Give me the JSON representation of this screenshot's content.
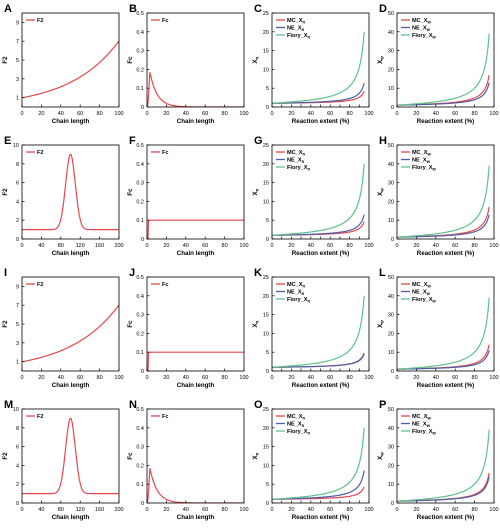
{
  "chart_data": [
    {
      "letter": "A",
      "type": "line",
      "series": [
        {
          "name": "F2",
          "shape": "exp",
          "color": "#e8474c"
        }
      ],
      "xlabel": "Chain length",
      "ylabel": "F2",
      "xlim": [
        0,
        100
      ],
      "ylim": [
        0,
        10
      ],
      "xticks": [
        0,
        20,
        40,
        60,
        80,
        100
      ],
      "yticks": [
        1,
        3,
        5,
        7,
        9
      ],
      "legend": "top-left"
    },
    {
      "letter": "B",
      "type": "line",
      "series": [
        {
          "name": "Fc",
          "shape": "decay",
          "color": "#e8474c"
        }
      ],
      "xlabel": "Chain length",
      "ylabel": "Fc",
      "xlim": [
        0,
        100
      ],
      "ylim": [
        0,
        0.5
      ],
      "xticks": [
        0,
        20,
        40,
        60,
        80,
        100
      ],
      "yticks": [
        0,
        0.1,
        0.2,
        0.3,
        0.4,
        0.5
      ],
      "legend": "top-left"
    },
    {
      "letter": "C",
      "type": "line",
      "series": [
        {
          "name": "MC_X̄n",
          "base": "MC_X",
          "sub": "n",
          "end": 4.2,
          "color": "#e8474c"
        },
        {
          "name": "NE_X̄n",
          "base": "NE_X",
          "sub": "n",
          "end": 6.3,
          "color": "#4d5fa8"
        },
        {
          "name": "Flory_X̄n",
          "base": "Flory_X",
          "sub": "n",
          "end": 20,
          "color": "#5cc28a"
        }
      ],
      "xlabel": "Reaction extent (%)",
      "ylabel": "X̄n",
      "ylabel_base": "X",
      "ylabel_sub": "n",
      "xlim": [
        0,
        100
      ],
      "ylim": [
        0,
        25
      ],
      "xticks": [
        0,
        10,
        20,
        30,
        40,
        50,
        60,
        70,
        80,
        90,
        100
      ],
      "yticks": [
        0,
        5,
        10,
        15,
        20,
        25
      ],
      "legend": "top-left"
    },
    {
      "letter": "D",
      "type": "line",
      "series": [
        {
          "name": "MC_X̄w",
          "base": "MC_X",
          "sub": "w",
          "end": 17,
          "color": "#e8474c"
        },
        {
          "name": "NE_X̄w",
          "base": "NE_X",
          "sub": "w",
          "end": 13,
          "color": "#4d5fa8"
        },
        {
          "name": "Flory_X̄w",
          "base": "Flory_X",
          "sub": "w",
          "end": 39,
          "color": "#5cc28a"
        }
      ],
      "xlabel": "Reaction extent (%)",
      "ylabel": "X̄w",
      "ylabel_base": "X",
      "ylabel_sub": "w",
      "xlim": [
        0,
        100
      ],
      "ylim": [
        0,
        50
      ],
      "xticks": [
        0,
        20,
        40,
        60,
        80,
        100
      ],
      "yticks": [
        0,
        10,
        20,
        30,
        40,
        50
      ],
      "legend": "top-left"
    },
    {
      "letter": "E",
      "type": "line",
      "series": [
        {
          "name": "F2",
          "shape": "gauss",
          "color": "#e8474c"
        }
      ],
      "xlabel": "Chain length",
      "ylabel": "F2",
      "xlim": [
        0,
        200
      ],
      "ylim": [
        0,
        10
      ],
      "xticks": [
        0,
        40,
        80,
        120,
        160,
        200
      ],
      "yticks": [
        0,
        2,
        4,
        6,
        8,
        10
      ],
      "legend": "top-left"
    },
    {
      "letter": "F",
      "type": "line",
      "series": [
        {
          "name": "Fc",
          "shape": "step",
          "color": "#e8474c"
        }
      ],
      "xlabel": "Chain length",
      "ylabel": "Fc",
      "xlim": [
        0,
        100
      ],
      "ylim": [
        0,
        0.5
      ],
      "xticks": [
        0,
        20,
        40,
        60,
        80,
        100
      ],
      "yticks": [
        0,
        0.1,
        0.2,
        0.3,
        0.4,
        0.5
      ],
      "legend": "top-left"
    },
    {
      "letter": "G",
      "type": "line",
      "series": [
        {
          "name": "MC_X̄n",
          "base": "MC_X",
          "sub": "n",
          "end": 4.6,
          "color": "#e8474c"
        },
        {
          "name": "NE_X̄n",
          "base": "NE_X",
          "sub": "n",
          "end": 6.5,
          "color": "#4d5fa8"
        },
        {
          "name": "Flory_X̄n",
          "base": "Flory_X",
          "sub": "n",
          "end": 20,
          "color": "#5cc28a"
        }
      ],
      "xlabel": "Reaction extent (%)",
      "ylabel": "X̄n",
      "ylabel_base": "X",
      "ylabel_sub": "n",
      "xlim": [
        0,
        100
      ],
      "ylim": [
        0,
        25
      ],
      "xticks": [
        0,
        10,
        20,
        30,
        40,
        50,
        60,
        70,
        80,
        90,
        100
      ],
      "yticks": [
        0,
        5,
        10,
        15,
        20,
        25
      ],
      "legend": "top-left"
    },
    {
      "letter": "H",
      "type": "line",
      "series": [
        {
          "name": "MC_X̄w",
          "base": "MC_X",
          "sub": "w",
          "end": 17,
          "color": "#e8474c"
        },
        {
          "name": "NE_X̄w",
          "base": "NE_X",
          "sub": "w",
          "end": 13,
          "color": "#4d5fa8"
        },
        {
          "name": "Flory_X̄w",
          "base": "Flory_X",
          "sub": "w",
          "end": 39,
          "color": "#5cc28a"
        }
      ],
      "xlabel": "Reaction extent (%)",
      "ylabel": "X̄w",
      "ylabel_base": "X",
      "ylabel_sub": "w",
      "xlim": [
        0,
        100
      ],
      "ylim": [
        0,
        50
      ],
      "xticks": [
        0,
        20,
        40,
        60,
        80,
        100
      ],
      "yticks": [
        0,
        10,
        20,
        30,
        40,
        50
      ],
      "legend": "top-left"
    },
    {
      "letter": "I",
      "type": "line",
      "series": [
        {
          "name": "F2",
          "shape": "exp",
          "color": "#e8474c"
        }
      ],
      "xlabel": "Chain length",
      "ylabel": "F2",
      "xlim": [
        0,
        100
      ],
      "ylim": [
        0,
        10
      ],
      "xticks": [
        0,
        20,
        40,
        60,
        80,
        100
      ],
      "yticks": [
        1,
        3,
        5,
        7,
        9
      ],
      "legend": "top-left"
    },
    {
      "letter": "J",
      "type": "line",
      "series": [
        {
          "name": "Fc",
          "shape": "step",
          "color": "#e8474c"
        }
      ],
      "xlabel": "Chain length",
      "ylabel": "Fc",
      "xlim": [
        0,
        100
      ],
      "ylim": [
        0,
        0.5
      ],
      "xticks": [
        0,
        20,
        40,
        60,
        80,
        100
      ],
      "yticks": [
        0,
        0.1,
        0.2,
        0.3,
        0.4,
        0.5
      ],
      "legend": "top-left"
    },
    {
      "letter": "K",
      "type": "line",
      "series": [
        {
          "name": "MC_X̄n",
          "base": "MC_X",
          "sub": "n",
          "end": 4.5,
          "color": "#e8474c"
        },
        {
          "name": "NE_X̄n",
          "base": "NE_X",
          "sub": "n",
          "end": 4.8,
          "color": "#4d5fa8"
        },
        {
          "name": "Flory_X̄n",
          "base": "Flory_X",
          "sub": "n",
          "end": 20,
          "color": "#5cc28a"
        }
      ],
      "xlabel": "Reaction extent (%)",
      "ylabel": "X̄n",
      "ylabel_base": "X",
      "ylabel_sub": "n",
      "xlim": [
        0,
        100
      ],
      "ylim": [
        0,
        25
      ],
      "xticks": [
        0,
        10,
        20,
        30,
        40,
        50,
        60,
        70,
        80,
        90,
        100
      ],
      "yticks": [
        0,
        5,
        10,
        15,
        20,
        25
      ],
      "legend": "top-left"
    },
    {
      "letter": "L",
      "type": "line",
      "series": [
        {
          "name": "MC_X̄w",
          "base": "MC_X",
          "sub": "w",
          "end": 14,
          "color": "#e8474c"
        },
        {
          "name": "NE_X̄w",
          "base": "NE_X",
          "sub": "w",
          "end": 11,
          "color": "#4d5fa8"
        },
        {
          "name": "Flory_X̄w",
          "base": "Flory_X",
          "sub": "w",
          "end": 39,
          "color": "#5cc28a"
        }
      ],
      "xlabel": "Reaction extent (%)",
      "ylabel": "X̄w",
      "ylabel_base": "X",
      "ylabel_sub": "w",
      "xlim": [
        0,
        100
      ],
      "ylim": [
        0,
        50
      ],
      "xticks": [
        0,
        20,
        40,
        60,
        80,
        100
      ],
      "yticks": [
        0,
        10,
        20,
        30,
        40,
        50
      ],
      "legend": "top-left"
    },
    {
      "letter": "M",
      "type": "line",
      "series": [
        {
          "name": "F2",
          "shape": "gauss",
          "color": "#e8474c"
        }
      ],
      "xlabel": "Chain length",
      "ylabel": "F2",
      "xlim": [
        0,
        200
      ],
      "ylim": [
        0,
        10
      ],
      "xticks": [
        0,
        40,
        80,
        120,
        160,
        200
      ],
      "yticks": [
        0,
        2,
        4,
        6,
        8,
        10
      ],
      "legend": "top-left"
    },
    {
      "letter": "N",
      "type": "line",
      "series": [
        {
          "name": "Fc",
          "shape": "decay",
          "color": "#e8474c"
        }
      ],
      "xlabel": "Chain length",
      "ylabel": "Fc",
      "xlim": [
        0,
        100
      ],
      "ylim": [
        0,
        0.5
      ],
      "xticks": [
        0,
        20,
        40,
        60,
        80,
        100
      ],
      "yticks": [
        0,
        0.1,
        0.2,
        0.3,
        0.4,
        0.5
      ],
      "legend": "top-left"
    },
    {
      "letter": "O",
      "type": "line",
      "series": [
        {
          "name": "MC_X̄n",
          "base": "MC_X",
          "sub": "n",
          "end": 4.3,
          "color": "#e8474c"
        },
        {
          "name": "NE_X̄n",
          "base": "NE_X",
          "sub": "n",
          "end": 8.6,
          "color": "#4d5fa8"
        },
        {
          "name": "Flory_X̄n",
          "base": "Flory_X",
          "sub": "n",
          "end": 20,
          "color": "#5cc28a"
        }
      ],
      "xlabel": "Reaction extent (%)",
      "ylabel": "X̄n",
      "ylabel_base": "X",
      "ylabel_sub": "n",
      "xlim": [
        0,
        100
      ],
      "ylim": [
        0,
        25
      ],
      "xticks": [
        0,
        10,
        20,
        30,
        40,
        50,
        60,
        70,
        80,
        90,
        100
      ],
      "yticks": [
        0,
        5,
        10,
        15,
        20,
        25
      ],
      "legend": "top-left"
    },
    {
      "letter": "P",
      "type": "line",
      "series": [
        {
          "name": "MC_X̄w",
          "base": "MC_X",
          "sub": "w",
          "end": 16,
          "color": "#e8474c"
        },
        {
          "name": "NE_X̄w",
          "base": "NE_X",
          "sub": "w",
          "end": 14,
          "color": "#4d5fa8"
        },
        {
          "name": "Flory_X̄w",
          "base": "Flory_X",
          "sub": "w",
          "end": 39,
          "color": "#5cc28a"
        }
      ],
      "xlabel": "Reaction extent (%)",
      "ylabel": "X̄w",
      "ylabel_base": "X",
      "ylabel_sub": "w",
      "xlim": [
        0,
        100
      ],
      "ylim": [
        0,
        50
      ],
      "xticks": [
        0,
        20,
        40,
        60,
        80,
        100
      ],
      "yticks": [
        0,
        10,
        20,
        30,
        40,
        50
      ],
      "legend": "top-left"
    }
  ]
}
